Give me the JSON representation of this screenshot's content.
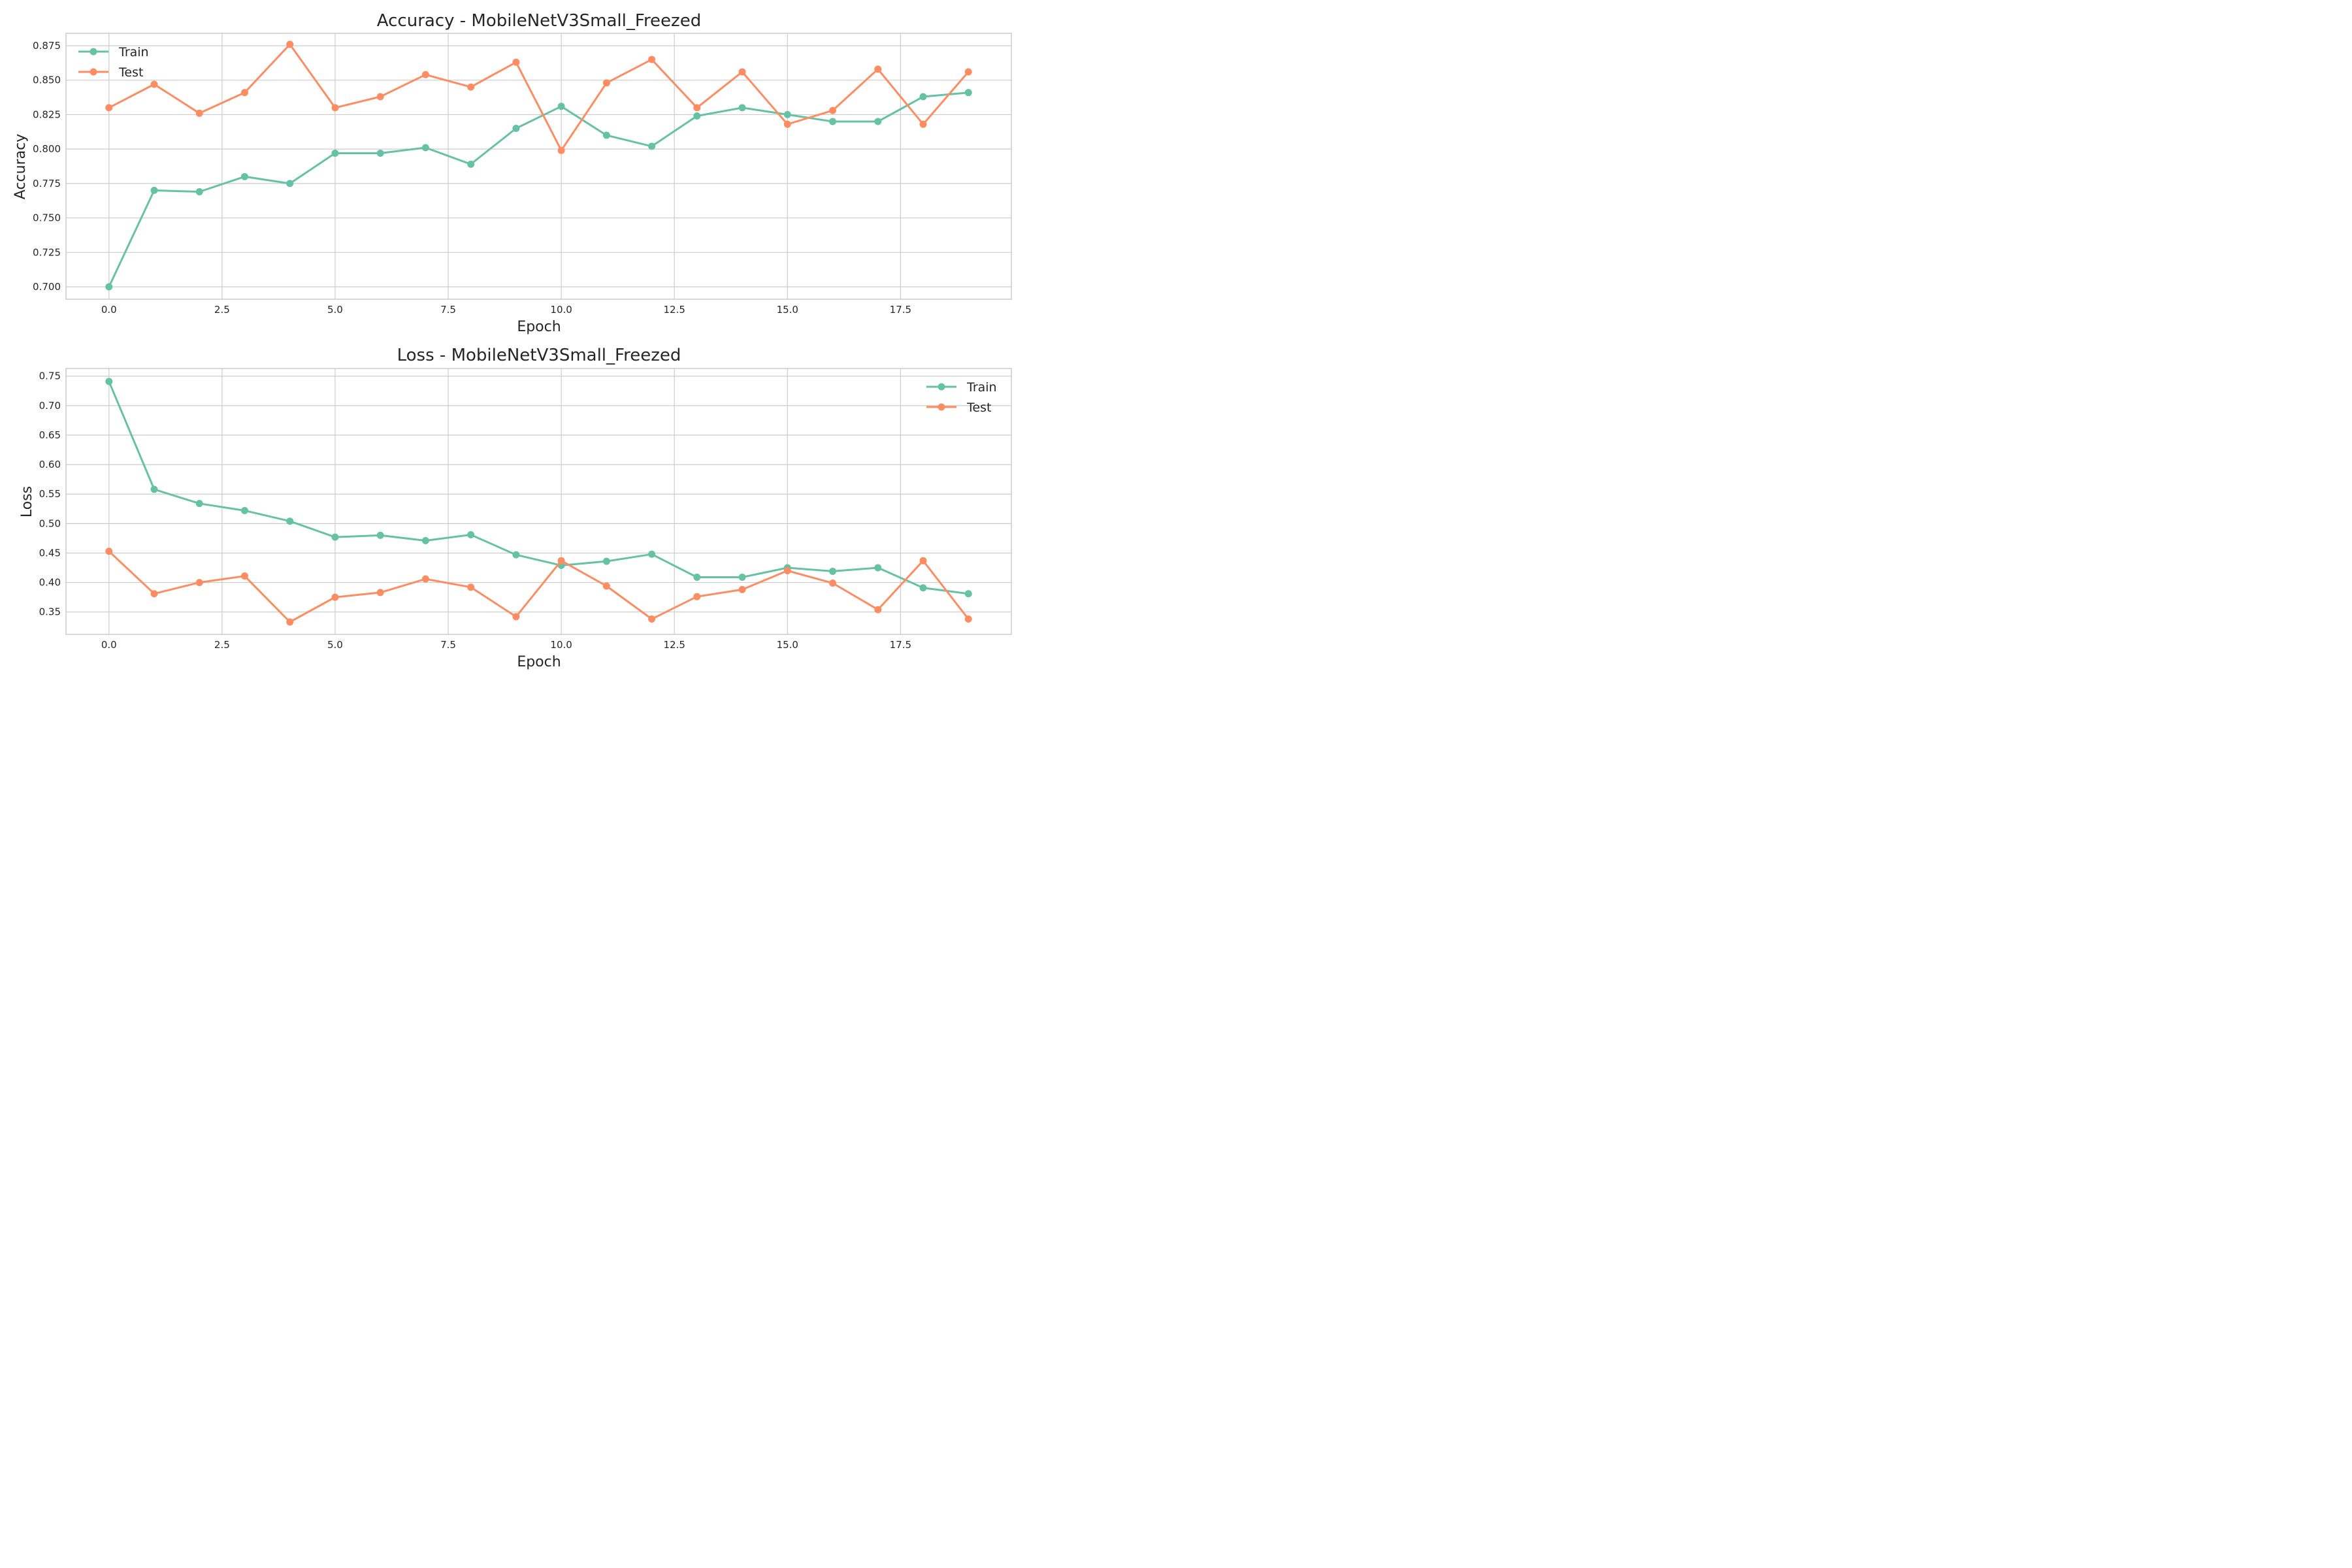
{
  "colors": {
    "train": "#66c2a5",
    "test": "#fc8d62"
  },
  "chart_data": [
    {
      "type": "line",
      "title": "Accuracy - MobileNetV3Small_Freezed",
      "xlabel": "Epoch",
      "ylabel": "Accuracy",
      "xlim": [
        -0.95,
        19.95
      ],
      "ylim": [
        0.691,
        0.884
      ],
      "xticks": [
        0.0,
        2.5,
        5.0,
        7.5,
        10.0,
        12.5,
        15.0,
        17.5
      ],
      "xtick_labels": [
        "0.0",
        "2.5",
        "5.0",
        "7.5",
        "10.0",
        "12.5",
        "15.0",
        "17.5"
      ],
      "yticks": [
        0.7,
        0.725,
        0.75,
        0.775,
        0.8,
        0.825,
        0.85,
        0.875
      ],
      "ytick_labels": [
        "0.700",
        "0.725",
        "0.750",
        "0.775",
        "0.800",
        "0.825",
        "0.850",
        "0.875"
      ],
      "grid": true,
      "legend_position": "top-left",
      "x": [
        0,
        1,
        2,
        3,
        4,
        5,
        6,
        7,
        8,
        9,
        10,
        11,
        12,
        13,
        14,
        15,
        16,
        17,
        18,
        19
      ],
      "series": [
        {
          "name": "Train",
          "color": "#66c2a5",
          "values": [
            0.7,
            0.77,
            0.769,
            0.78,
            0.775,
            0.797,
            0.797,
            0.801,
            0.789,
            0.815,
            0.831,
            0.81,
            0.802,
            0.824,
            0.83,
            0.825,
            0.82,
            0.82,
            0.838,
            0.841
          ]
        },
        {
          "name": "Test",
          "color": "#fc8d62",
          "values": [
            0.83,
            0.847,
            0.826,
            0.841,
            0.876,
            0.83,
            0.838,
            0.854,
            0.845,
            0.863,
            0.799,
            0.848,
            0.865,
            0.83,
            0.856,
            0.818,
            0.828,
            0.858,
            0.818,
            0.856
          ]
        }
      ]
    },
    {
      "type": "line",
      "title": "Loss - MobileNetV3Small_Freezed",
      "xlabel": "Epoch",
      "ylabel": "Loss",
      "xlim": [
        -0.95,
        19.95
      ],
      "ylim": [
        0.312,
        0.763
      ],
      "xticks": [
        0.0,
        2.5,
        5.0,
        7.5,
        10.0,
        12.5,
        15.0,
        17.5
      ],
      "xtick_labels": [
        "0.0",
        "2.5",
        "5.0",
        "7.5",
        "10.0",
        "12.5",
        "15.0",
        "17.5"
      ],
      "yticks": [
        0.35,
        0.4,
        0.45,
        0.5,
        0.55,
        0.6,
        0.65,
        0.7,
        0.75
      ],
      "ytick_labels": [
        "0.35",
        "0.40",
        "0.45",
        "0.50",
        "0.55",
        "0.60",
        "0.65",
        "0.70",
        "0.75"
      ],
      "grid": true,
      "legend_position": "top-right",
      "x": [
        0,
        1,
        2,
        3,
        4,
        5,
        6,
        7,
        8,
        9,
        10,
        11,
        12,
        13,
        14,
        15,
        16,
        17,
        18,
        19
      ],
      "series": [
        {
          "name": "Train",
          "color": "#66c2a5",
          "values": [
            0.741,
            0.558,
            0.534,
            0.522,
            0.504,
            0.477,
            0.48,
            0.471,
            0.481,
            0.447,
            0.429,
            0.436,
            0.448,
            0.409,
            0.409,
            0.425,
            0.419,
            0.425,
            0.391,
            0.381
          ]
        },
        {
          "name": "Test",
          "color": "#fc8d62",
          "values": [
            0.453,
            0.381,
            0.4,
            0.411,
            0.333,
            0.375,
            0.383,
            0.406,
            0.392,
            0.342,
            0.437,
            0.394,
            0.338,
            0.376,
            0.388,
            0.42,
            0.399,
            0.354,
            0.437,
            0.338
          ]
        }
      ]
    }
  ]
}
